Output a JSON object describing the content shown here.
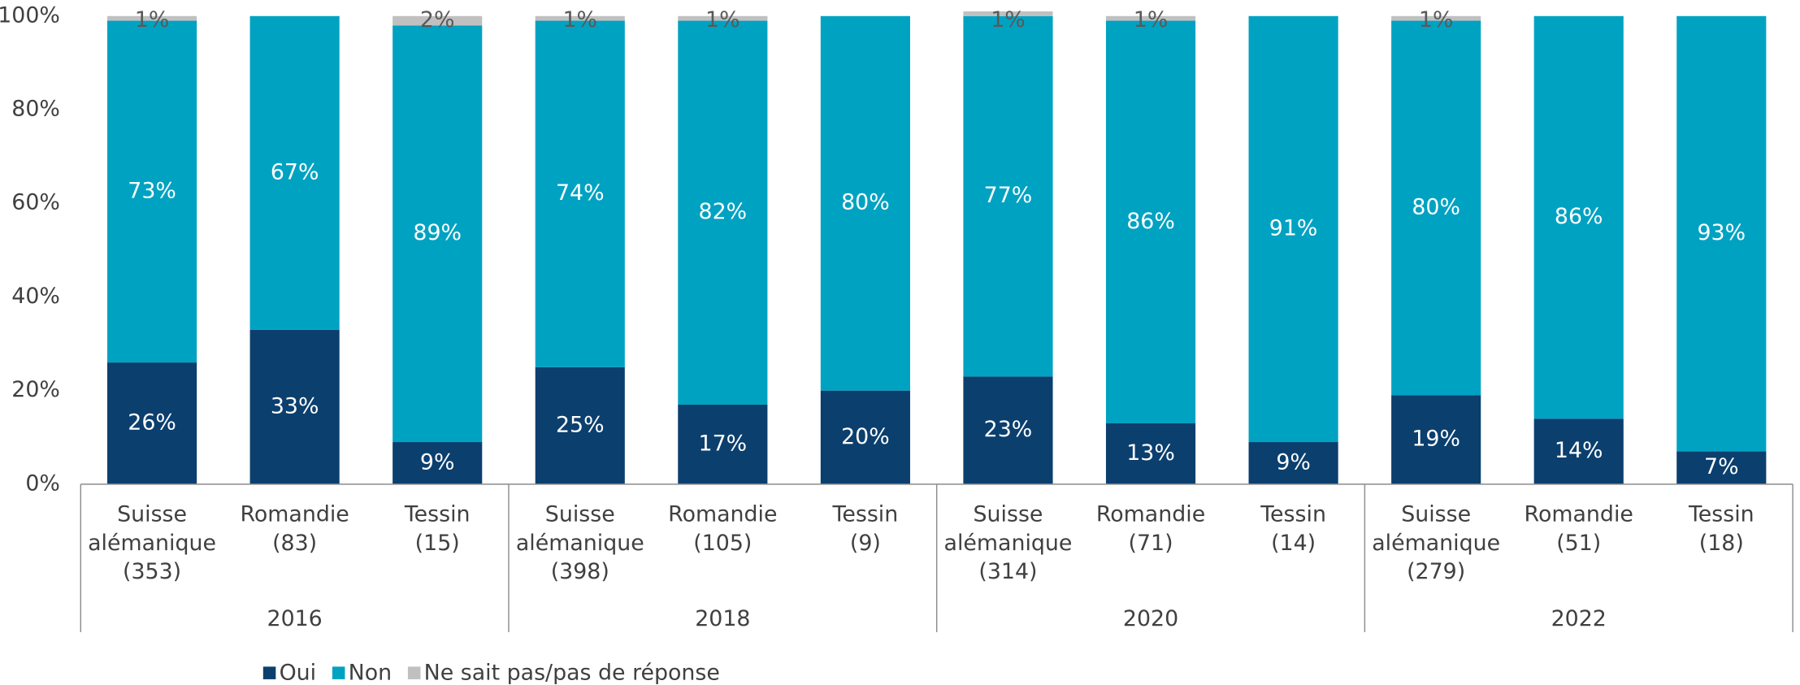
{
  "chart_data": {
    "type": "stacked-bar",
    "categories": [
      [
        "Suisse",
        "alémanique",
        "(353)"
      ],
      [
        "Romandie",
        "(83)"
      ],
      [
        "Tessin",
        "(15)"
      ],
      [
        "Suisse",
        "alémanique",
        "(398)"
      ],
      [
        "Romandie",
        "(105)"
      ],
      [
        "Tessin",
        "(9)"
      ],
      [
        "Suisse",
        "alémanique",
        "(314)"
      ],
      [
        "Romandie",
        "(71)"
      ],
      [
        "Tessin",
        "(14)"
      ],
      [
        "Suisse",
        "alémanique",
        "(279)"
      ],
      [
        "Romandie",
        "(51)"
      ],
      [
        "Tessin",
        "(18)"
      ]
    ],
    "groups": [
      "2016",
      "2018",
      "2020",
      "2022"
    ],
    "series": [
      {
        "name": "Oui",
        "color": "#0b3f6e",
        "values": [
          26,
          33,
          9,
          25,
          17,
          20,
          23,
          13,
          9,
          19,
          14,
          7
        ],
        "value_labels": [
          "26%",
          "33%",
          "9%",
          "25%",
          "17%",
          "20%",
          "23%",
          "13%",
          "9%",
          "19%",
          "14%",
          "7%"
        ]
      },
      {
        "name": "Non",
        "color": "#00a2c2",
        "values": [
          73,
          67,
          89,
          74,
          82,
          80,
          77,
          86,
          91,
          80,
          86,
          93
        ],
        "value_labels": [
          "73%",
          "67%",
          "89%",
          "74%",
          "82%",
          "80%",
          "77%",
          "86%",
          "91%",
          "80%",
          "86%",
          "93%"
        ]
      },
      {
        "name": "Ne sait pas/pas de réponse",
        "color": "#c0c0c0",
        "values": [
          1,
          0,
          2,
          1,
          1,
          0,
          1,
          1,
          0,
          1,
          0,
          0
        ],
        "value_labels": [
          "1%",
          null,
          "2%",
          "1%",
          "1%",
          null,
          "1%",
          "1%",
          null,
          "1%",
          null,
          null
        ]
      }
    ],
    "ylim": [
      0,
      100
    ],
    "yticks": [
      {
        "value": 0,
        "label": "0%"
      },
      {
        "value": 20,
        "label": "20%"
      },
      {
        "value": 40,
        "label": "40%"
      },
      {
        "value": 60,
        "label": "60%"
      },
      {
        "value": 80,
        "label": "80%"
      },
      {
        "value": 100,
        "label": "100%"
      }
    ],
    "grid": false,
    "legend": "bottom-left"
  }
}
